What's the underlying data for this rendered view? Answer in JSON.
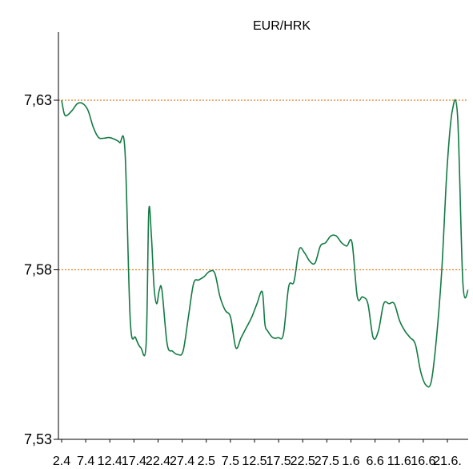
{
  "chart_data": {
    "type": "line",
    "title": "EUR/HRK",
    "xlabel": "",
    "ylabel": "",
    "ylim": [
      7.53,
      7.63
    ],
    "yticks": [
      "7,53",
      "7,58",
      "7,63"
    ],
    "reference_lines": [
      7.63,
      7.58
    ],
    "grid": false,
    "x_tick_labels": [
      "2.4",
      "7.4",
      "12.4",
      "17.4",
      "22.4",
      "27.4",
      "2.5",
      "7.5",
      "12.5",
      "17.5",
      "22.5",
      "27.5",
      "1.6",
      "6.6",
      "11.6",
      "16.6",
      "21.6."
    ],
    "series": [
      {
        "color": "#137a44",
        "points": [
          [
            0,
            7.63
          ],
          [
            0.5,
            7.626
          ],
          [
            1,
            7.6255
          ],
          [
            2,
            7.627
          ],
          [
            3,
            7.629
          ],
          [
            4,
            7.629
          ],
          [
            5,
            7.627
          ],
          [
            6,
            7.622
          ],
          [
            7,
            7.619
          ],
          [
            8,
            7.6188
          ],
          [
            9,
            7.619
          ],
          [
            10,
            7.6185
          ],
          [
            11,
            7.6175
          ],
          [
            12,
            7.615
          ],
          [
            13,
            7.565
          ],
          [
            14,
            7.56
          ],
          [
            15,
            7.557
          ],
          [
            16,
            7.558
          ],
          [
            16.5,
            7.597
          ],
          [
            17,
            7.59
          ],
          [
            17.5,
            7.575
          ],
          [
            18,
            7.57
          ],
          [
            18.5,
            7.574
          ],
          [
            19,
            7.574
          ],
          [
            20,
            7.558
          ],
          [
            21,
            7.556
          ],
          [
            22,
            7.555
          ],
          [
            23,
            7.556
          ],
          [
            24,
            7.566
          ],
          [
            25,
            7.576
          ],
          [
            26,
            7.577
          ],
          [
            27,
            7.578
          ],
          [
            28,
            7.5795
          ],
          [
            29,
            7.579
          ],
          [
            30,
            7.572
          ],
          [
            31,
            7.568
          ],
          [
            32,
            7.566
          ],
          [
            33,
            7.557
          ],
          [
            34,
            7.56
          ],
          [
            35,
            7.563
          ],
          [
            36,
            7.566
          ],
          [
            37,
            7.57
          ],
          [
            38,
            7.5735
          ],
          [
            38.5,
            7.564
          ],
          [
            39,
            7.562
          ],
          [
            40,
            7.56
          ],
          [
            41,
            7.56
          ],
          [
            42,
            7.561
          ],
          [
            43,
            7.575
          ],
          [
            44,
            7.5765
          ],
          [
            45,
            7.586
          ],
          [
            46,
            7.585
          ],
          [
            47,
            7.5825
          ],
          [
            48,
            7.582
          ],
          [
            49,
            7.587
          ],
          [
            50,
            7.588
          ],
          [
            51,
            7.59
          ],
          [
            52,
            7.59
          ],
          [
            53,
            7.588
          ],
          [
            54,
            7.587
          ],
          [
            55,
            7.588
          ],
          [
            56,
            7.572
          ],
          [
            57,
            7.572
          ],
          [
            58,
            7.57
          ],
          [
            59,
            7.56
          ],
          [
            60,
            7.562
          ],
          [
            61,
            7.57
          ],
          [
            62,
            7.57
          ],
          [
            63,
            7.57
          ],
          [
            64,
            7.565
          ],
          [
            65,
            7.562
          ],
          [
            66,
            7.56
          ],
          [
            67,
            7.558
          ],
          [
            68,
            7.55
          ],
          [
            69,
            7.546
          ],
          [
            70,
            7.547
          ],
          [
            71,
            7.56
          ],
          [
            72,
            7.58
          ],
          [
            73,
            7.61
          ],
          [
            74,
            7.627
          ],
          [
            75,
            7.625
          ],
          [
            76,
            7.576
          ],
          [
            77,
            7.574
          ]
        ]
      }
    ]
  }
}
